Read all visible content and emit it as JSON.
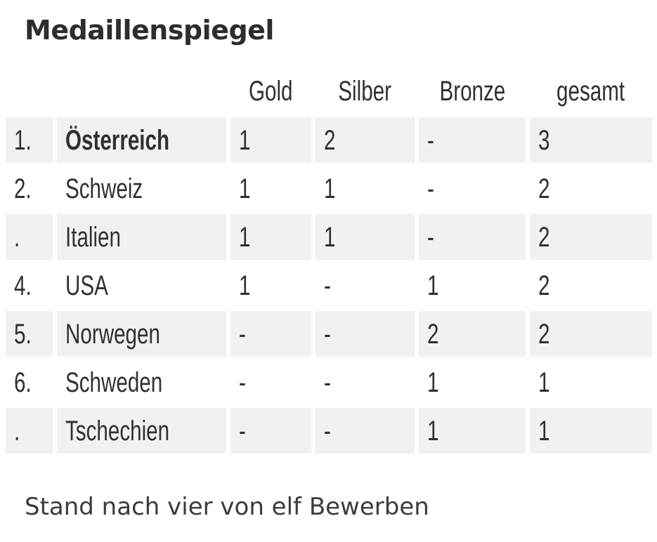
{
  "title": "Medaillenspiegel",
  "table": {
    "headers": [
      "Gold",
      "Silber",
      "Bronze",
      "gesamt"
    ],
    "rows": [
      {
        "rank": "1.",
        "country": "Österreich",
        "bold": true,
        "gold": "1",
        "silver": "2",
        "bronze": "-",
        "total": "3"
      },
      {
        "rank": "2.",
        "country": "Schweiz",
        "bold": false,
        "gold": "1",
        "silver": "1",
        "bronze": "-",
        "total": "2"
      },
      {
        "rank": ".",
        "country": "Italien",
        "bold": false,
        "gold": "1",
        "silver": "1",
        "bronze": "-",
        "total": "2"
      },
      {
        "rank": "4.",
        "country": "USA",
        "bold": false,
        "gold": "1",
        "silver": "-",
        "bronze": "1",
        "total": "2"
      },
      {
        "rank": "5.",
        "country": "Norwegen",
        "bold": false,
        "gold": "-",
        "silver": "-",
        "bronze": "2",
        "total": "2"
      },
      {
        "rank": "6.",
        "country": "Schweden",
        "bold": false,
        "gold": "-",
        "silver": "-",
        "bronze": "1",
        "total": "1"
      },
      {
        "rank": ".",
        "country": "Tschechien",
        "bold": false,
        "gold": "-",
        "silver": "-",
        "bronze": "1",
        "total": "1"
      }
    ]
  },
  "footer": "Stand nach vier von elf Bewerben",
  "colors": {
    "row_shade": "#f0f1f3",
    "text": "#2f3033",
    "background": "#ffffff"
  }
}
